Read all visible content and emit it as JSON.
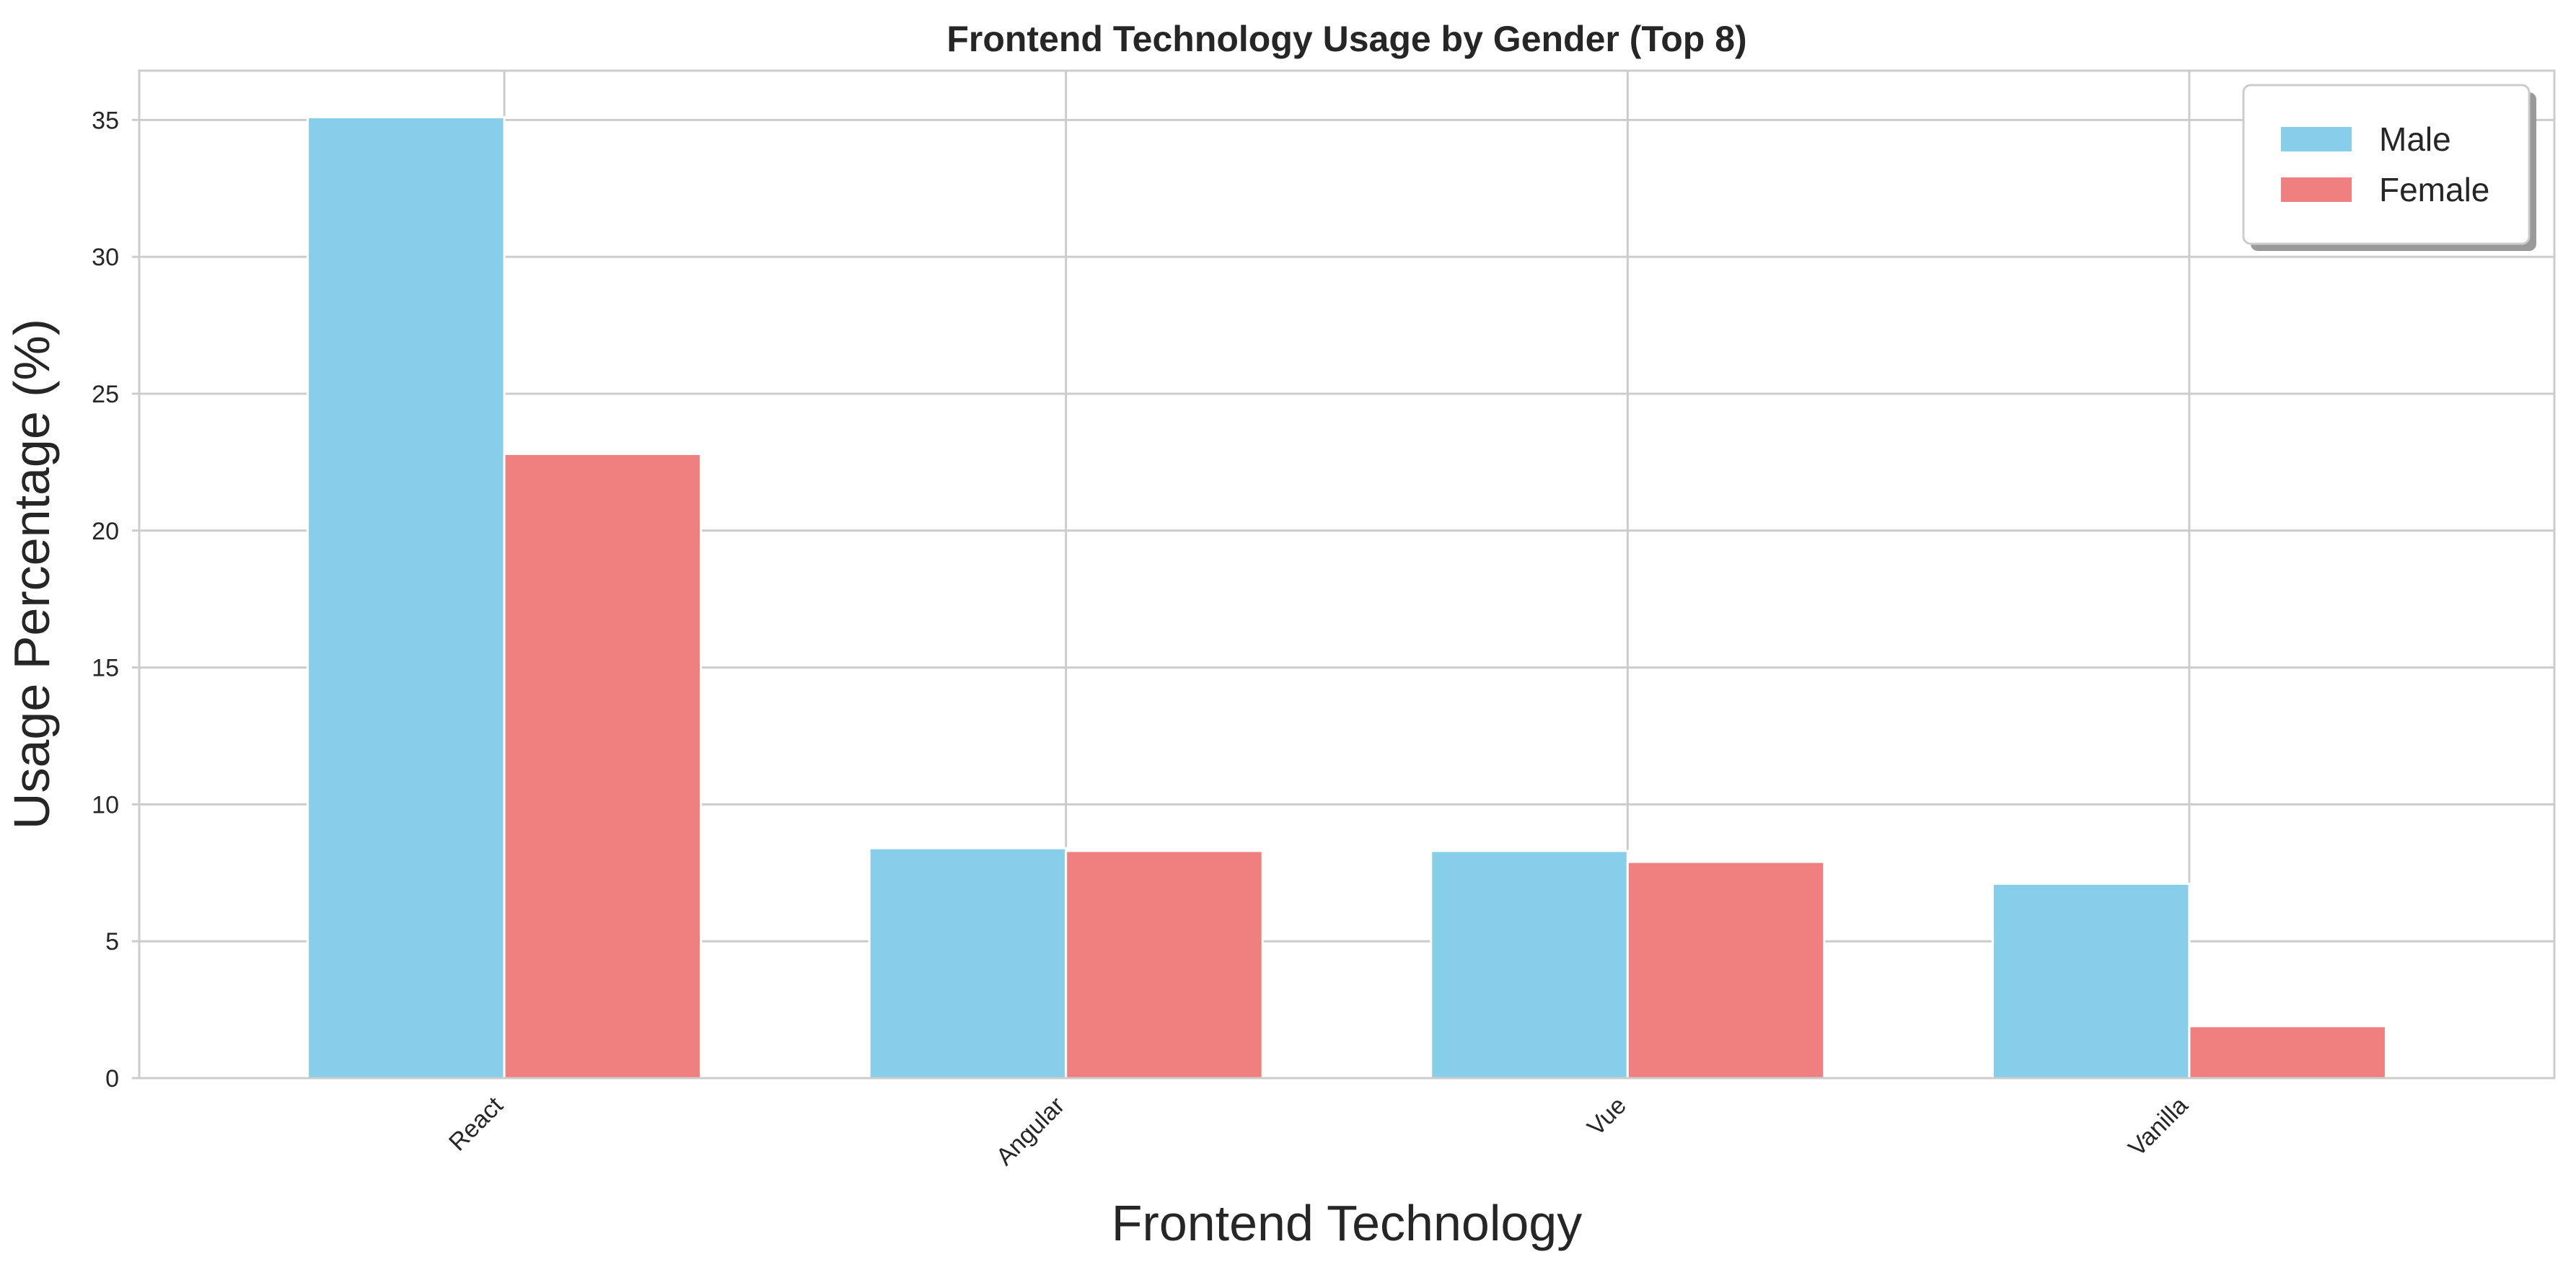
{
  "chart_data": {
    "type": "bar",
    "title": "Frontend Technology Usage by Gender (Top 8)",
    "xlabel": "Frontend Technology",
    "ylabel": "Usage Percentage (%)",
    "categories": [
      "React",
      "Angular",
      "Vue",
      "Vanilla"
    ],
    "series": [
      {
        "name": "Male",
        "color": "#87ceeb",
        "values": [
          35.1,
          8.4,
          8.3,
          7.1
        ]
      },
      {
        "name": "Female",
        "color": "#f08080",
        "values": [
          22.8,
          8.3,
          7.9,
          1.9
        ]
      }
    ],
    "yticks": [
      0,
      5,
      10,
      15,
      20,
      25,
      30,
      35
    ],
    "ylim": [
      0,
      36.8
    ],
    "grid": true,
    "legend_position": "top-right",
    "xtick_rotation": 45
  }
}
